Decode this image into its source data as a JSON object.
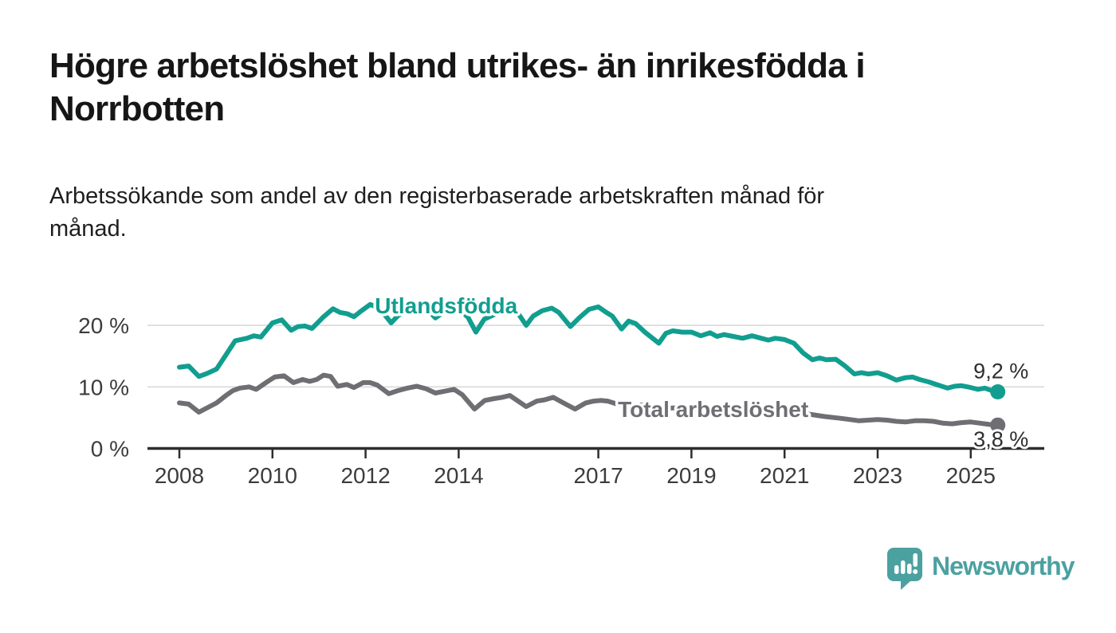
{
  "header": {
    "title_lines": [
      "Högre arbetslöshet bland utrikes- än inrikesfödda i",
      "Norrbotten"
    ],
    "subtitle_lines": [
      "Arbetssökande som andel av den registerbaserade arbetskraften månad för",
      "månad."
    ]
  },
  "branding": {
    "logo_text": "Newsworthy",
    "logo_color": "#4ba1a0",
    "logo_icon": "speech-bubble-bar-chart-icon"
  },
  "chart_data": {
    "type": "line",
    "unit": "percent of labour force",
    "grid": "horizontal",
    "legend_position": "inline-labels",
    "xlim": [
      2007.3,
      2026.6
    ],
    "ylim": [
      0,
      26
    ],
    "x_ticks": [
      "2008",
      "2010",
      "2012",
      "2014",
      "2017",
      "2019",
      "2021",
      "2023",
      "2025"
    ],
    "y_ticks": [
      {
        "value": 0,
        "label": "0 %"
      },
      {
        "value": 10,
        "label": "10 %"
      },
      {
        "value": 20,
        "label": "20 %"
      }
    ],
    "series": [
      {
        "name": "Utlandsfödda",
        "slug": "utlandsfodda",
        "color": "#119e8f",
        "end_value": 9.2,
        "end_label": "9,2 %",
        "end_label_side": "above",
        "label_pos": [
          2012.2,
          21.95
        ],
        "points": [
          [
            2008.0,
            13.2
          ],
          [
            2008.2,
            13.4
          ],
          [
            2008.42,
            11.7
          ],
          [
            2008.6,
            12.2
          ],
          [
            2008.8,
            12.9
          ],
          [
            2009.0,
            15.2
          ],
          [
            2009.2,
            17.5
          ],
          [
            2009.45,
            17.9
          ],
          [
            2009.6,
            18.3
          ],
          [
            2009.75,
            18.1
          ],
          [
            2010.0,
            20.4
          ],
          [
            2010.2,
            20.9
          ],
          [
            2010.4,
            19.2
          ],
          [
            2010.55,
            19.8
          ],
          [
            2010.7,
            19.9
          ],
          [
            2010.85,
            19.5
          ],
          [
            2011.1,
            21.4
          ],
          [
            2011.3,
            22.7
          ],
          [
            2011.45,
            22.1
          ],
          [
            2011.6,
            21.9
          ],
          [
            2011.75,
            21.4
          ],
          [
            2011.9,
            22.3
          ],
          [
            2012.1,
            23.4
          ],
          [
            2012.3,
            22.8
          ],
          [
            2012.55,
            20.4
          ],
          [
            2012.7,
            21.6
          ],
          [
            2012.9,
            22.4
          ],
          [
            2013.1,
            23.1
          ],
          [
            2013.25,
            23.2
          ],
          [
            2013.5,
            21.2
          ],
          [
            2013.65,
            22.0
          ],
          [
            2013.85,
            22.5
          ],
          [
            2014.05,
            22.4
          ],
          [
            2014.2,
            21.3
          ],
          [
            2014.37,
            18.9
          ],
          [
            2014.55,
            21.0
          ],
          [
            2014.75,
            21.7
          ],
          [
            2014.95,
            22.4
          ],
          [
            2015.2,
            22.8
          ],
          [
            2015.45,
            20.0
          ],
          [
            2015.6,
            21.5
          ],
          [
            2015.8,
            22.4
          ],
          [
            2016.0,
            22.8
          ],
          [
            2016.15,
            22.1
          ],
          [
            2016.4,
            19.8
          ],
          [
            2016.6,
            21.3
          ],
          [
            2016.8,
            22.6
          ],
          [
            2017.0,
            23.0
          ],
          [
            2017.15,
            22.2
          ],
          [
            2017.3,
            21.5
          ],
          [
            2017.5,
            19.4
          ],
          [
            2017.65,
            20.7
          ],
          [
            2017.8,
            20.3
          ],
          [
            2018.0,
            18.9
          ],
          [
            2018.3,
            17.1
          ],
          [
            2018.45,
            18.7
          ],
          [
            2018.6,
            19.1
          ],
          [
            2018.8,
            18.9
          ],
          [
            2019.0,
            18.9
          ],
          [
            2019.2,
            18.3
          ],
          [
            2019.4,
            18.8
          ],
          [
            2019.55,
            18.2
          ],
          [
            2019.7,
            18.5
          ],
          [
            2019.9,
            18.2
          ],
          [
            2020.1,
            17.9
          ],
          [
            2020.3,
            18.3
          ],
          [
            2020.5,
            17.9
          ],
          [
            2020.65,
            17.6
          ],
          [
            2020.8,
            17.9
          ],
          [
            2021.0,
            17.7
          ],
          [
            2021.2,
            17.1
          ],
          [
            2021.4,
            15.5
          ],
          [
            2021.6,
            14.4
          ],
          [
            2021.75,
            14.7
          ],
          [
            2021.9,
            14.4
          ],
          [
            2022.1,
            14.5
          ],
          [
            2022.3,
            13.4
          ],
          [
            2022.5,
            12.1
          ],
          [
            2022.65,
            12.3
          ],
          [
            2022.8,
            12.1
          ],
          [
            2023.0,
            12.3
          ],
          [
            2023.2,
            11.8
          ],
          [
            2023.4,
            11.1
          ],
          [
            2023.6,
            11.5
          ],
          [
            2023.75,
            11.6
          ],
          [
            2023.9,
            11.2
          ],
          [
            2024.1,
            10.8
          ],
          [
            2024.3,
            10.3
          ],
          [
            2024.5,
            9.8
          ],
          [
            2024.65,
            10.1
          ],
          [
            2024.8,
            10.2
          ],
          [
            2025.0,
            9.9
          ],
          [
            2025.15,
            9.6
          ],
          [
            2025.3,
            9.8
          ],
          [
            2025.45,
            9.4
          ],
          [
            2025.58,
            9.2
          ]
        ]
      },
      {
        "name": "Total arbetslöshet",
        "slug": "total-arbetsloshet",
        "color": "#6e6e73",
        "end_value": 3.8,
        "end_label": "3,8 %",
        "end_label_side": "below",
        "label_pos": [
          2017.42,
          5.1
        ],
        "points": [
          [
            2008.0,
            7.4
          ],
          [
            2008.2,
            7.2
          ],
          [
            2008.42,
            5.9
          ],
          [
            2008.6,
            6.6
          ],
          [
            2008.8,
            7.4
          ],
          [
            2009.0,
            8.6
          ],
          [
            2009.15,
            9.4
          ],
          [
            2009.3,
            9.8
          ],
          [
            2009.5,
            10.0
          ],
          [
            2009.65,
            9.6
          ],
          [
            2009.9,
            10.9
          ],
          [
            2010.05,
            11.6
          ],
          [
            2010.25,
            11.8
          ],
          [
            2010.45,
            10.7
          ],
          [
            2010.65,
            11.2
          ],
          [
            2010.8,
            10.9
          ],
          [
            2010.95,
            11.2
          ],
          [
            2011.1,
            11.9
          ],
          [
            2011.25,
            11.7
          ],
          [
            2011.4,
            10.1
          ],
          [
            2011.6,
            10.4
          ],
          [
            2011.75,
            9.9
          ],
          [
            2011.95,
            10.7
          ],
          [
            2012.1,
            10.7
          ],
          [
            2012.25,
            10.3
          ],
          [
            2012.5,
            8.9
          ],
          [
            2012.7,
            9.4
          ],
          [
            2012.9,
            9.8
          ],
          [
            2013.1,
            10.1
          ],
          [
            2013.3,
            9.7
          ],
          [
            2013.5,
            9.0
          ],
          [
            2013.7,
            9.3
          ],
          [
            2013.9,
            9.6
          ],
          [
            2014.08,
            8.7
          ],
          [
            2014.34,
            6.4
          ],
          [
            2014.56,
            7.8
          ],
          [
            2014.76,
            8.1
          ],
          [
            2014.93,
            8.3
          ],
          [
            2015.1,
            8.6
          ],
          [
            2015.45,
            6.8
          ],
          [
            2015.68,
            7.7
          ],
          [
            2015.85,
            7.9
          ],
          [
            2016.03,
            8.3
          ],
          [
            2016.25,
            7.4
          ],
          [
            2016.5,
            6.4
          ],
          [
            2016.73,
            7.4
          ],
          [
            2016.9,
            7.7
          ],
          [
            2017.05,
            7.8
          ],
          [
            2017.2,
            7.7
          ],
          [
            2017.45,
            7.1
          ],
          [
            2017.7,
            7.0
          ],
          [
            2018.0,
            7.1
          ],
          [
            2018.35,
            6.5
          ],
          [
            2018.7,
            6.6
          ],
          [
            2019.05,
            6.4
          ],
          [
            2019.4,
            6.1
          ],
          [
            2019.75,
            6.2
          ],
          [
            2020.1,
            6.5
          ],
          [
            2020.45,
            6.7
          ],
          [
            2020.8,
            6.4
          ],
          [
            2021.15,
            6.0
          ],
          [
            2021.5,
            5.6
          ],
          [
            2021.85,
            5.2
          ],
          [
            2022.2,
            4.9
          ],
          [
            2022.4,
            4.7
          ],
          [
            2022.6,
            4.5
          ],
          [
            2022.8,
            4.6
          ],
          [
            2023.0,
            4.7
          ],
          [
            2023.2,
            4.6
          ],
          [
            2023.4,
            4.4
          ],
          [
            2023.6,
            4.3
          ],
          [
            2023.8,
            4.5
          ],
          [
            2024.0,
            4.5
          ],
          [
            2024.2,
            4.4
          ],
          [
            2024.4,
            4.1
          ],
          [
            2024.6,
            4.0
          ],
          [
            2024.8,
            4.2
          ],
          [
            2025.0,
            4.3
          ],
          [
            2025.2,
            4.1
          ],
          [
            2025.4,
            3.9
          ],
          [
            2025.58,
            3.8
          ]
        ]
      }
    ]
  }
}
